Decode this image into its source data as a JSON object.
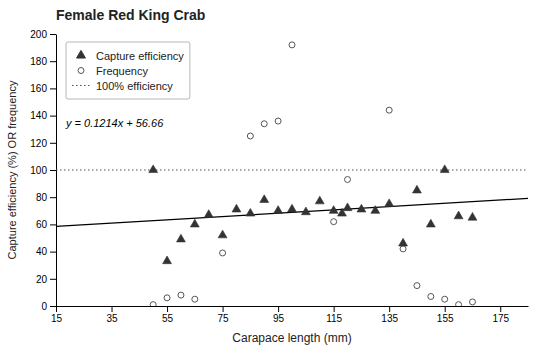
{
  "chart_data": {
    "type": "scatter",
    "title": "Female Red King Crab",
    "x_label": "Carapace length (mm)",
    "y_label": "Capture efficiency (%) OR frequency",
    "xlim": [
      15,
      185
    ],
    "ylim": [
      0,
      200
    ],
    "xticks": [
      15,
      35,
      55,
      75,
      95,
      115,
      135,
      155,
      175
    ],
    "yticks": [
      0,
      20,
      40,
      60,
      80,
      100,
      120,
      140,
      160,
      180,
      200
    ],
    "grid": false,
    "legend": "upper left",
    "series": [
      {
        "name": "Capture efficiency",
        "type": "scatter",
        "marker": "triangle",
        "color": "#333333",
        "x": [
          50,
          55,
          60,
          65,
          70,
          75,
          80,
          85,
          90,
          95,
          100,
          105,
          110,
          115,
          118,
          120,
          125,
          130,
          135,
          140,
          145,
          150,
          155,
          160,
          165
        ],
        "values": [
          100,
          33,
          49,
          60,
          67,
          52,
          71,
          68,
          78,
          70,
          71,
          69,
          77,
          70,
          68,
          72,
          71,
          70,
          75,
          46,
          85,
          60,
          100,
          66,
          65
        ]
      },
      {
        "name": "Frequency",
        "type": "scatter",
        "marker": "open-circle",
        "color": "#555555",
        "x": [
          50,
          55,
          60,
          65,
          75,
          85,
          90,
          95,
          100,
          115,
          120,
          135,
          140,
          145,
          150,
          155,
          160,
          165
        ],
        "values": [
          1,
          6,
          8,
          5,
          39,
          125,
          134,
          136,
          192,
          62,
          93,
          144,
          42,
          15,
          7,
          5,
          1,
          3
        ]
      },
      {
        "name": "100% efficiency",
        "type": "hline",
        "line_style": "dotted",
        "color": "#555555",
        "values": [
          100
        ]
      }
    ],
    "trend_line": {
      "x": [
        15,
        185
      ],
      "values": [
        58.481,
        79.119
      ],
      "color": "#000000",
      "line_style": "solid"
    },
    "annotations": [
      {
        "text": "y = 0.1214x + 56.66",
        "color": "#000000"
      }
    ]
  }
}
